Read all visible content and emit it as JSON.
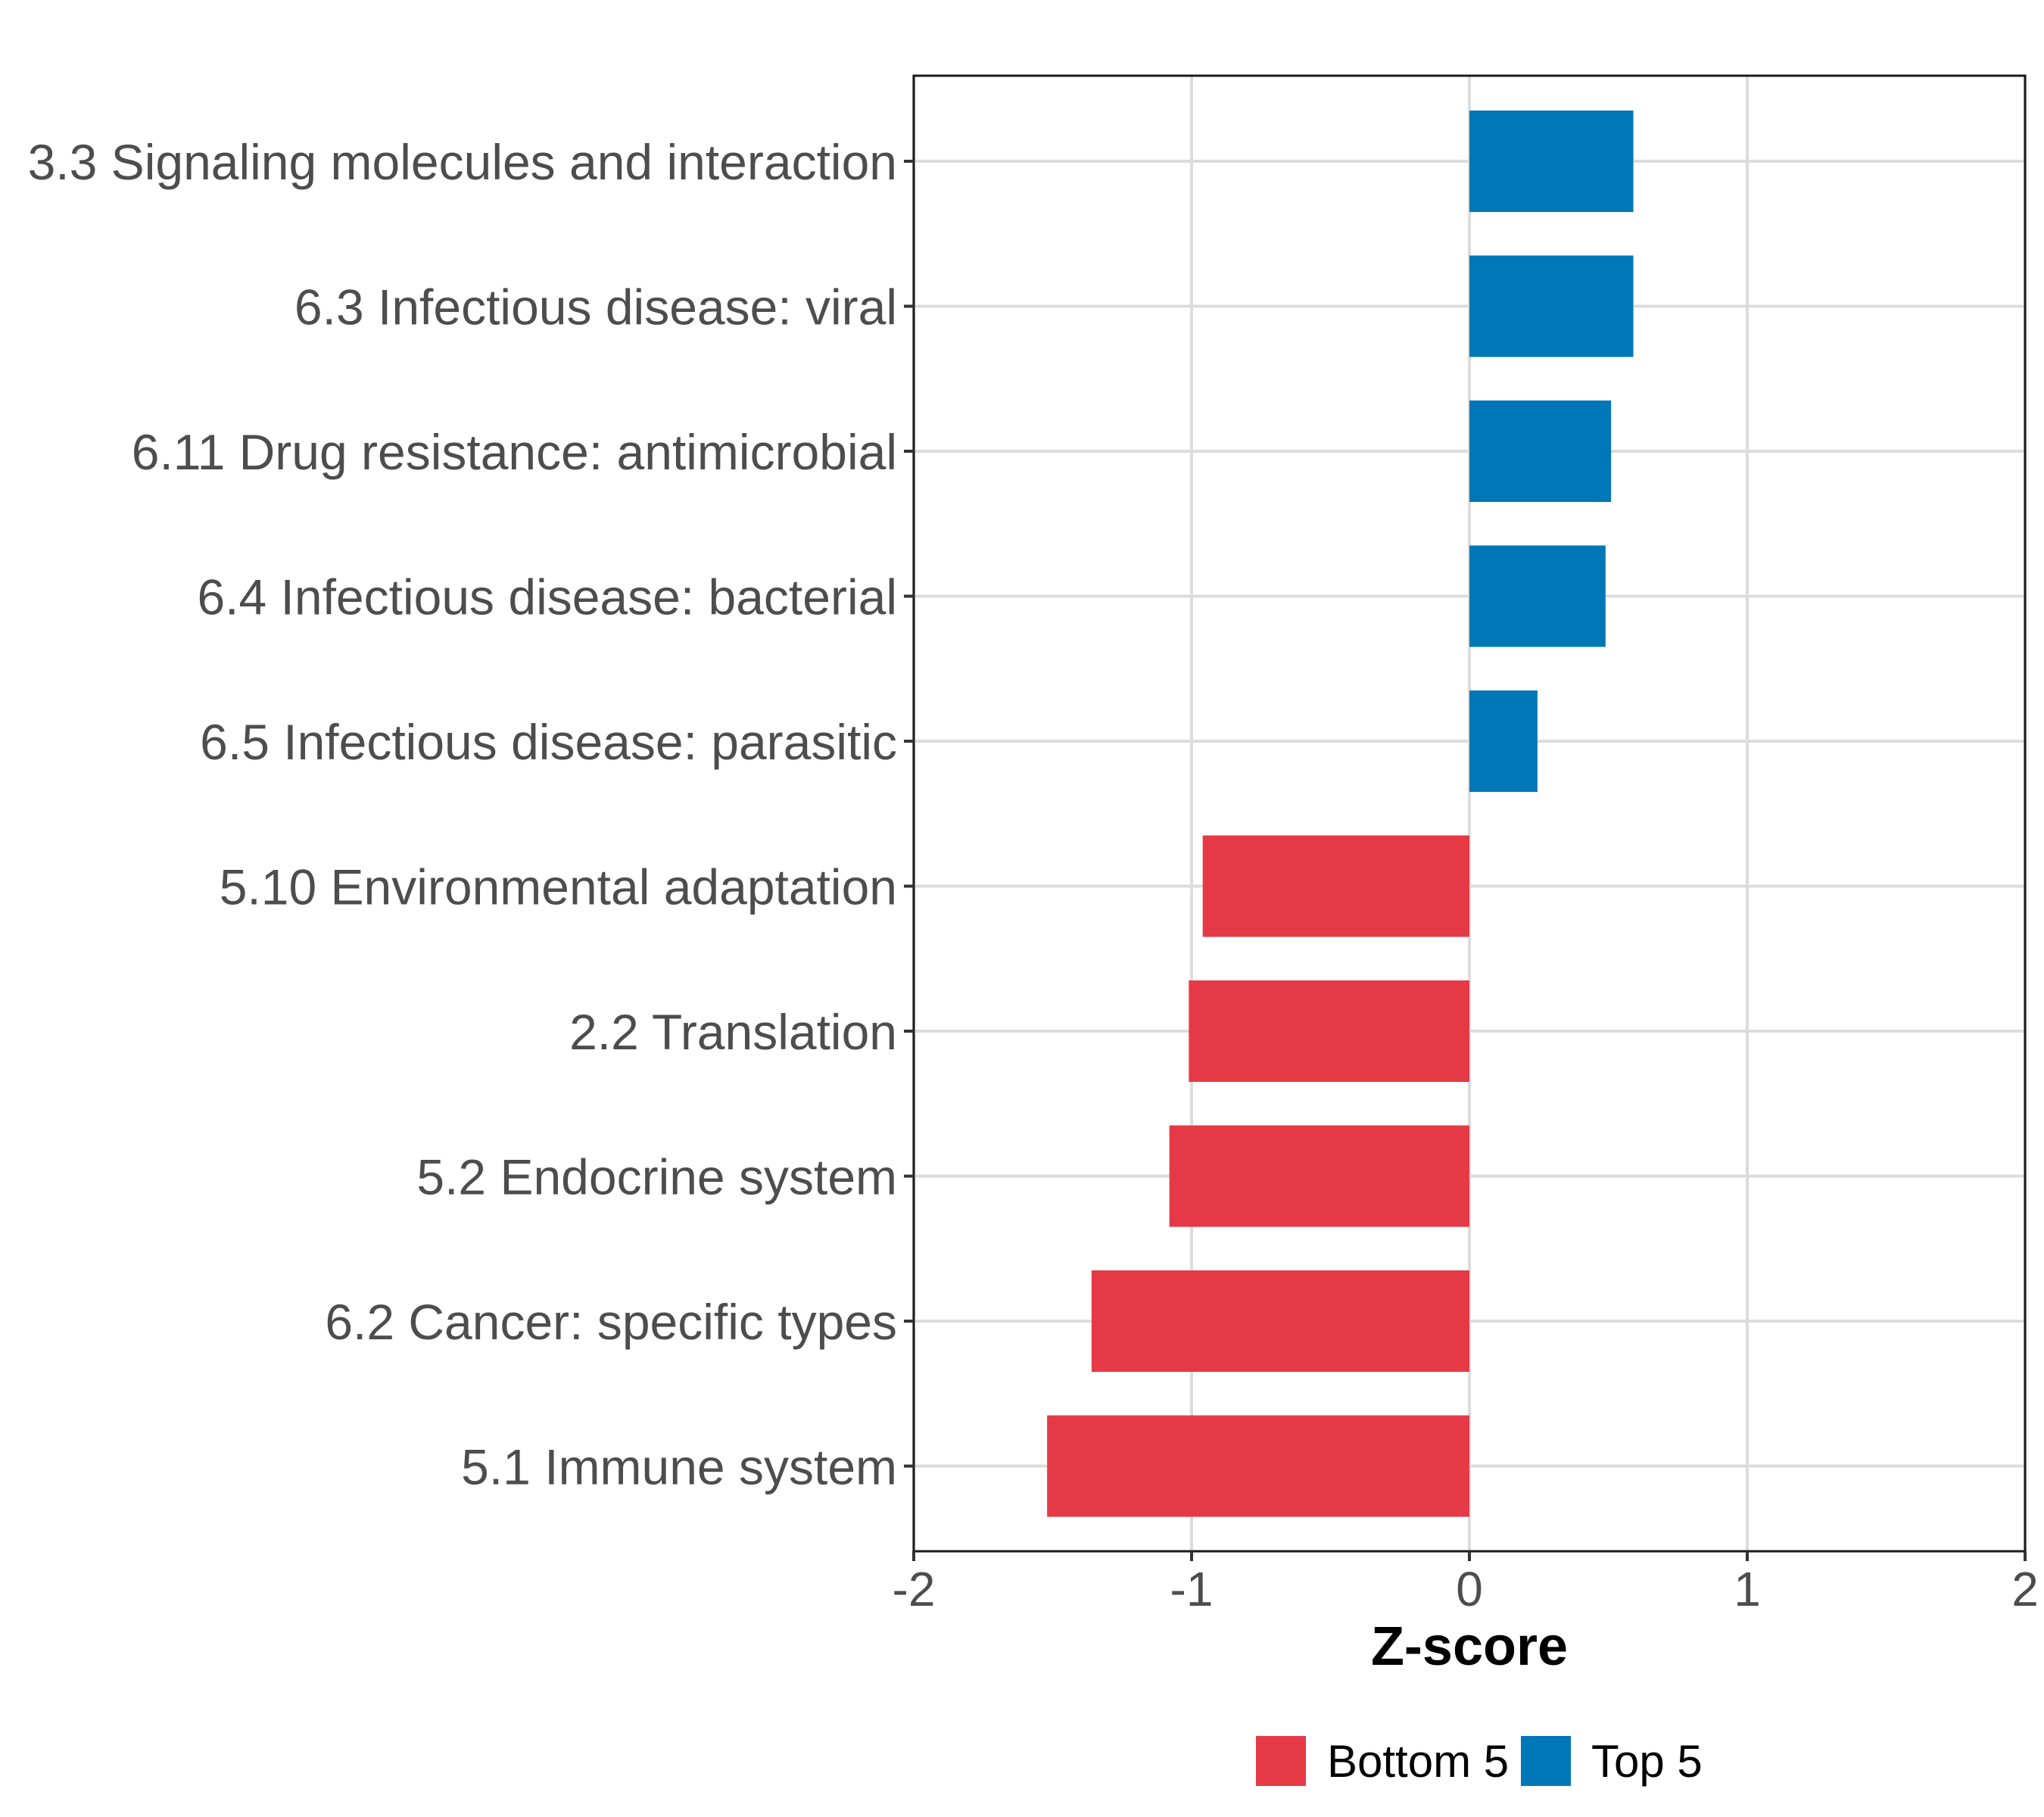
{
  "chart_data": {
    "type": "bar",
    "orientation": "horizontal",
    "title": "",
    "xlabel": "Z-score",
    "ylabel": "",
    "xlim": [
      -2,
      2
    ],
    "xticks": [
      -2,
      -1,
      0,
      1,
      2
    ],
    "xtick_labels": [
      "-2",
      "-1",
      "0",
      "1",
      "2"
    ],
    "grid": true,
    "legend_position": "bottom",
    "categories": [
      "3.3 Signaling molecules and interaction",
      "6.3 Infectious disease: viral",
      "6.11 Drug resistance: antimicrobial",
      "6.4 Infectious disease: bacterial",
      "6.5 Infectious disease: parasitic",
      "5.10 Environmental adaptation",
      "2.2 Translation",
      "5.2 Endocrine system",
      "6.2 Cancer: specific types",
      "5.1 Immune system"
    ],
    "values": [
      0.59,
      0.59,
      0.51,
      0.49,
      0.245,
      -0.96,
      -1.01,
      -1.08,
      -1.36,
      -1.52
    ],
    "groups": [
      "Top 5",
      "Top 5",
      "Top 5",
      "Top 5",
      "Top 5",
      "Bottom 5",
      "Bottom 5",
      "Bottom 5",
      "Bottom 5",
      "Bottom 5"
    ],
    "legend": [
      {
        "label": "Bottom 5",
        "color": "#E63946"
      },
      {
        "label": "Top 5",
        "color": "#0077B6"
      }
    ]
  },
  "colors": {
    "Bottom 5": "#E63946",
    "Top 5": "#0077B6",
    "grid": "#dcdcdc",
    "axis": "#1a1a1a",
    "tick_text": "#4d4d4d"
  }
}
